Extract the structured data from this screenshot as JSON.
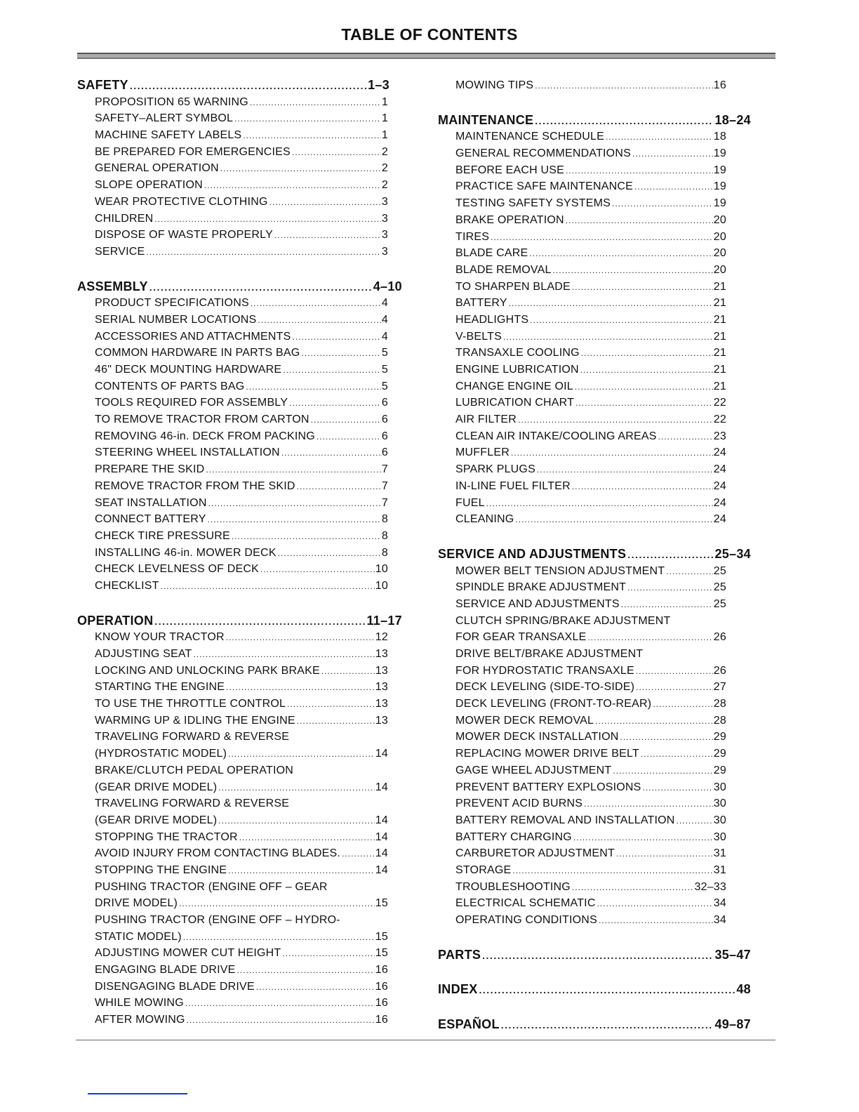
{
  "title": "TABLE OF CONTENTS",
  "columns": [
    [
      {
        "type": "heading",
        "title": "SAFETY",
        "page": "1–3"
      },
      {
        "type": "entry",
        "title": "PROPOSITION 65 WARNING",
        "page": "1"
      },
      {
        "type": "entry",
        "title": "SAFETY–ALERT SYMBOL",
        "page": "1"
      },
      {
        "type": "entry",
        "title": "MACHINE SAFETY LABELS",
        "page": "1"
      },
      {
        "type": "entry",
        "title": "BE PREPARED FOR EMERGENCIES",
        "page": "2"
      },
      {
        "type": "entry",
        "title": "GENERAL OPERATION",
        "page": "2"
      },
      {
        "type": "entry",
        "title": "SLOPE OPERATION",
        "page": "2"
      },
      {
        "type": "entry",
        "title": "WEAR PROTECTIVE CLOTHING",
        "page": "3"
      },
      {
        "type": "entry",
        "title": "CHILDREN",
        "page": "3"
      },
      {
        "type": "entry",
        "title": "DISPOSE OF WASTE PROPERLY",
        "page": "3"
      },
      {
        "type": "entry",
        "title": "SERVICE",
        "page": "3"
      },
      {
        "type": "heading",
        "title": "ASSEMBLY",
        "page": "4–10"
      },
      {
        "type": "entry",
        "title": "PRODUCT SPECIFICATIONS",
        "page": "4"
      },
      {
        "type": "entry",
        "title": "SERIAL NUMBER LOCATIONS",
        "page": "4"
      },
      {
        "type": "entry",
        "title": "ACCESSORIES AND ATTACHMENTS",
        "page": "4"
      },
      {
        "type": "entry",
        "title": "COMMON HARDWARE IN PARTS BAG",
        "page": "5"
      },
      {
        "type": "entry",
        "title": "46\" DECK MOUNTING HARDWARE",
        "page": "5"
      },
      {
        "type": "entry",
        "title": "CONTENTS OF PARTS BAG",
        "page": "5"
      },
      {
        "type": "entry",
        "title": "TOOLS REQUIRED FOR ASSEMBLY",
        "page": "6"
      },
      {
        "type": "entry",
        "title": "TO REMOVE TRACTOR FROM CARTON",
        "page": "6"
      },
      {
        "type": "entry",
        "title": "REMOVING 46-in. DECK FROM PACKING",
        "page": "6"
      },
      {
        "type": "entry",
        "title": "STEERING WHEEL INSTALLATION",
        "page": "6"
      },
      {
        "type": "entry",
        "title": "PREPARE THE SKID",
        "page": "7"
      },
      {
        "type": "entry",
        "title": "REMOVE TRACTOR FROM THE SKID",
        "page": "7"
      },
      {
        "type": "entry",
        "title": "SEAT INSTALLATION",
        "page": "7"
      },
      {
        "type": "entry",
        "title": "CONNECT BATTERY",
        "page": "8"
      },
      {
        "type": "entry",
        "title": "CHECK TIRE PRESSURE",
        "page": "8"
      },
      {
        "type": "entry",
        "title": "INSTALLING 46-in. MOWER DECK",
        "page": "8"
      },
      {
        "type": "entry",
        "title": "CHECK LEVELNESS OF DECK",
        "page": "10"
      },
      {
        "type": "entry",
        "title": "CHECKLIST",
        "page": "10"
      },
      {
        "type": "heading",
        "title": "OPERATION",
        "page": "11–17"
      },
      {
        "type": "entry",
        "title": "KNOW YOUR TRACTOR",
        "page": "12"
      },
      {
        "type": "entry",
        "title": "ADJUSTING SEAT",
        "page": "13"
      },
      {
        "type": "entry",
        "title": "LOCKING AND UNLOCKING PARK BRAKE",
        "page": "13"
      },
      {
        "type": "entry",
        "title": "STARTING THE ENGINE",
        "page": "13"
      },
      {
        "type": "entry",
        "title": "TO USE THE THROTTLE CONTROL",
        "page": "13"
      },
      {
        "type": "entry",
        "title": "WARMING UP & IDLING THE ENGINE",
        "page": "13"
      },
      {
        "type": "entry",
        "title": "TRAVELING FORWARD & REVERSE",
        "page": ""
      },
      {
        "type": "entry",
        "title": "(HYDROSTATIC MODEL)",
        "page": "14"
      },
      {
        "type": "entry",
        "title": "BRAKE/CLUTCH PEDAL OPERATION",
        "page": ""
      },
      {
        "type": "entry",
        "title": "(GEAR DRIVE MODEL)",
        "page": "14"
      },
      {
        "type": "entry",
        "title": "TRAVELING FORWARD & REVERSE",
        "page": ""
      },
      {
        "type": "entry",
        "title": "(GEAR DRIVE MODEL)",
        "page": "14"
      },
      {
        "type": "entry",
        "title": "STOPPING THE TRACTOR",
        "page": "14"
      },
      {
        "type": "entry",
        "title": "AVOID INJURY FROM CONTACTING BLADES.",
        "page": "14"
      },
      {
        "type": "entry",
        "title": "STOPPING THE ENGINE",
        "page": "14"
      },
      {
        "type": "entry",
        "title": "PUSHING TRACTOR (ENGINE OFF – GEAR",
        "page": ""
      },
      {
        "type": "entry",
        "title": "DRIVE MODEL)",
        "page": "15"
      },
      {
        "type": "entry",
        "title": "PUSHING TRACTOR (ENGINE OFF – HYDRO-",
        "page": ""
      },
      {
        "type": "entry",
        "title": "STATIC MODEL)",
        "page": "15"
      },
      {
        "type": "entry",
        "title": "ADJUSTING MOWER CUT HEIGHT",
        "page": "15"
      },
      {
        "type": "entry",
        "title": "ENGAGING BLADE DRIVE",
        "page": "16"
      },
      {
        "type": "entry",
        "title": "DISENGAGING BLADE DRIVE",
        "page": "16"
      },
      {
        "type": "entry",
        "title": "WHILE MOWING",
        "page": "16"
      },
      {
        "type": "entry",
        "title": "AFTER MOWING",
        "page": "16"
      }
    ],
    [
      {
        "type": "entry",
        "title": "MOWING TIPS",
        "page": "16"
      },
      {
        "type": "heading",
        "title": "MAINTENANCE",
        "page": "18–24"
      },
      {
        "type": "entry",
        "title": "MAINTENANCE SCHEDULE",
        "page": "18"
      },
      {
        "type": "entry",
        "title": "GENERAL RECOMMENDATIONS",
        "page": "19"
      },
      {
        "type": "entry",
        "title": "BEFORE EACH USE",
        "page": "19"
      },
      {
        "type": "entry",
        "title": "PRACTICE SAFE MAINTENANCE",
        "page": "19"
      },
      {
        "type": "entry",
        "title": "TESTING SAFETY SYSTEMS",
        "page": "19"
      },
      {
        "type": "entry",
        "title": "BRAKE OPERATION",
        "page": "20"
      },
      {
        "type": "entry",
        "title": "TIRES",
        "page": "20"
      },
      {
        "type": "entry",
        "title": "BLADE CARE",
        "page": "20"
      },
      {
        "type": "entry",
        "title": "BLADE REMOVAL",
        "page": "20"
      },
      {
        "type": "entry",
        "title": "TO SHARPEN BLADE",
        "page": "21"
      },
      {
        "type": "entry",
        "title": "BATTERY",
        "page": "21"
      },
      {
        "type": "entry",
        "title": "HEADLIGHTS",
        "page": "21"
      },
      {
        "type": "entry",
        "title": "V-BELTS",
        "page": "21"
      },
      {
        "type": "entry",
        "title": "TRANSAXLE COOLING",
        "page": "21"
      },
      {
        "type": "entry",
        "title": "ENGINE LUBRICATION",
        "page": "21"
      },
      {
        "type": "entry",
        "title": "CHANGE ENGINE OIL",
        "page": "21"
      },
      {
        "type": "entry",
        "title": "LUBRICATION CHART",
        "page": "22"
      },
      {
        "type": "entry",
        "title": "AIR FILTER",
        "page": "22"
      },
      {
        "type": "entry",
        "title": "CLEAN AIR INTAKE/COOLING AREAS",
        "page": "23"
      },
      {
        "type": "entry",
        "title": "MUFFLER",
        "page": "24"
      },
      {
        "type": "entry",
        "title": "SPARK PLUGS",
        "page": "24"
      },
      {
        "type": "entry",
        "title": "IN-LINE FUEL FILTER",
        "page": "24"
      },
      {
        "type": "entry",
        "title": "FUEL",
        "page": "24"
      },
      {
        "type": "entry",
        "title": "CLEANING",
        "page": "24"
      },
      {
        "type": "heading",
        "title": "SERVICE AND ADJUSTMENTS",
        "page": "25–34"
      },
      {
        "type": "entry",
        "title": "MOWER BELT TENSION ADJUSTMENT",
        "page": "25"
      },
      {
        "type": "entry",
        "title": "SPINDLE BRAKE ADJUSTMENT",
        "page": "25"
      },
      {
        "type": "entry",
        "title": "SERVICE AND ADJUSTMENTS",
        "page": "25"
      },
      {
        "type": "entry",
        "title": "CLUTCH SPRING/BRAKE ADJUSTMENT",
        "page": ""
      },
      {
        "type": "entry",
        "title": "FOR GEAR TRANSAXLE",
        "page": "26"
      },
      {
        "type": "entry",
        "title": "DRIVE BELT/BRAKE ADJUSTMENT",
        "page": ""
      },
      {
        "type": "entry",
        "title": "FOR HYDROSTATIC TRANSAXLE",
        "page": "26"
      },
      {
        "type": "entry",
        "title": "DECK LEVELING (SIDE-TO-SIDE)",
        "page": "27"
      },
      {
        "type": "entry",
        "title": "DECK LEVELING (FRONT-TO-REAR)",
        "page": "28"
      },
      {
        "type": "entry",
        "title": "MOWER DECK REMOVAL",
        "page": "28"
      },
      {
        "type": "entry",
        "title": "MOWER DECK INSTALLATION",
        "page": "29"
      },
      {
        "type": "entry",
        "title": "REPLACING MOWER DRIVE BELT",
        "page": "29"
      },
      {
        "type": "entry",
        "title": "GAGE WHEEL ADJUSTMENT",
        "page": "29"
      },
      {
        "type": "entry",
        "title": "PREVENT BATTERY EXPLOSIONS",
        "page": "30"
      },
      {
        "type": "entry",
        "title": "PREVENT ACID BURNS",
        "page": "30"
      },
      {
        "type": "entry",
        "title": "BATTERY REMOVAL AND INSTALLATION",
        "page": "30"
      },
      {
        "type": "entry",
        "title": "BATTERY CHARGING",
        "page": "30"
      },
      {
        "type": "entry",
        "title": "CARBURETOR ADJUSTMENT",
        "page": "31"
      },
      {
        "type": "entry",
        "title": "STORAGE",
        "page": "31"
      },
      {
        "type": "entry",
        "title": "TROUBLESHOOTING",
        "page": "32–33"
      },
      {
        "type": "entry",
        "title": "ELECTRICAL SCHEMATIC",
        "page": "34"
      },
      {
        "type": "entry",
        "title": "OPERATING CONDITIONS",
        "page": "34"
      },
      {
        "type": "heading",
        "title": "PARTS",
        "page": "35–47"
      },
      {
        "type": "heading",
        "title": "INDEX",
        "page": "48"
      },
      {
        "type": "heading",
        "title": "ESPAÑOL",
        "page": "49–87"
      }
    ]
  ]
}
